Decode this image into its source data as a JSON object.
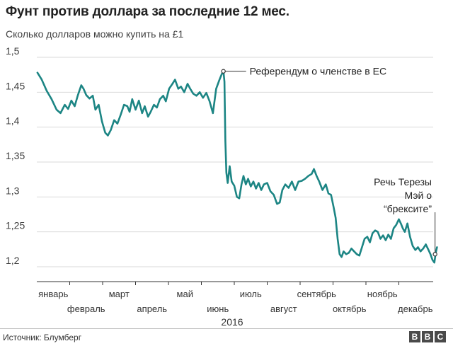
{
  "header": {
    "title": "Фунт против доллара за последние 12 мес.",
    "subtitle": "Сколько долларов можно купить на £1"
  },
  "footer": {
    "source": "Источник: Блумберг",
    "logo_letters": [
      "B",
      "B",
      "C"
    ]
  },
  "colors": {
    "line": "#1c8584",
    "grid": "#d9d9d9",
    "text": "#222222"
  },
  "chart_data": {
    "type": "line",
    "title": "Фунт против доллара за последние 12 мес.",
    "subtitle": "Сколько долларов можно купить на £1",
    "xlabel": "2016",
    "ylabel": "",
    "ylim": [
      1.2,
      1.5
    ],
    "yticks": [
      1.2,
      1.25,
      1.3,
      1.35,
      1.4,
      1.45,
      1.5
    ],
    "ytick_labels": [
      "1,2",
      "1,25",
      "1,3",
      "1,35",
      "1,4",
      "1,45",
      "1,5"
    ],
    "xlim": [
      0,
      12
    ],
    "month_ticks": [
      {
        "x": 0.5,
        "label": "январь"
      },
      {
        "x": 1.5,
        "label": "февраль"
      },
      {
        "x": 2.5,
        "label": "март"
      },
      {
        "x": 3.5,
        "label": "апрель"
      },
      {
        "x": 4.5,
        "label": "май"
      },
      {
        "x": 5.5,
        "label": "июнь"
      },
      {
        "x": 6.5,
        "label": "июль"
      },
      {
        "x": 7.5,
        "label": "август"
      },
      {
        "x": 8.5,
        "label": "сентябрь"
      },
      {
        "x": 9.5,
        "label": "октябрь"
      },
      {
        "x": 10.5,
        "label": "ноябрь"
      },
      {
        "x": 11.5,
        "label": "декабрь"
      }
    ],
    "year_label": "2016",
    "grid": true,
    "series": [
      {
        "values": [
          [
            0.02,
            1.478
          ],
          [
            0.15,
            1.468
          ],
          [
            0.3,
            1.452
          ],
          [
            0.45,
            1.44
          ],
          [
            0.6,
            1.425
          ],
          [
            0.72,
            1.42
          ],
          [
            0.85,
            1.432
          ],
          [
            0.95,
            1.426
          ],
          [
            1.05,
            1.438
          ],
          [
            1.15,
            1.43
          ],
          [
            1.25,
            1.446
          ],
          [
            1.35,
            1.46
          ],
          [
            1.42,
            1.455
          ],
          [
            1.5,
            1.446
          ],
          [
            1.6,
            1.441
          ],
          [
            1.7,
            1.445
          ],
          [
            1.78,
            1.425
          ],
          [
            1.88,
            1.432
          ],
          [
            1.98,
            1.408
          ],
          [
            2.08,
            1.392
          ],
          [
            2.16,
            1.388
          ],
          [
            2.25,
            1.396
          ],
          [
            2.35,
            1.41
          ],
          [
            2.45,
            1.405
          ],
          [
            2.55,
            1.418
          ],
          [
            2.65,
            1.432
          ],
          [
            2.75,
            1.43
          ],
          [
            2.82,
            1.422
          ],
          [
            2.9,
            1.44
          ],
          [
            3.0,
            1.425
          ],
          [
            3.1,
            1.438
          ],
          [
            3.2,
            1.42
          ],
          [
            3.28,
            1.43
          ],
          [
            3.38,
            1.415
          ],
          [
            3.46,
            1.422
          ],
          [
            3.56,
            1.432
          ],
          [
            3.65,
            1.428
          ],
          [
            3.74,
            1.44
          ],
          [
            3.84,
            1.445
          ],
          [
            3.92,
            1.437
          ],
          [
            4.02,
            1.455
          ],
          [
            4.12,
            1.462
          ],
          [
            4.2,
            1.468
          ],
          [
            4.3,
            1.455
          ],
          [
            4.38,
            1.458
          ],
          [
            4.48,
            1.45
          ],
          [
            4.58,
            1.462
          ],
          [
            4.66,
            1.455
          ],
          [
            4.75,
            1.448
          ],
          [
            4.85,
            1.445
          ],
          [
            4.95,
            1.45
          ],
          [
            5.05,
            1.442
          ],
          [
            5.15,
            1.449
          ],
          [
            5.25,
            1.437
          ],
          [
            5.35,
            1.42
          ],
          [
            5.45,
            1.455
          ],
          [
            5.55,
            1.468
          ],
          [
            5.62,
            1.476
          ],
          [
            5.67,
            1.48
          ],
          [
            5.7,
            1.465
          ],
          [
            5.73,
            1.38
          ],
          [
            5.76,
            1.335
          ],
          [
            5.8,
            1.32
          ],
          [
            5.86,
            1.344
          ],
          [
            5.92,
            1.322
          ],
          [
            6.0,
            1.316
          ],
          [
            6.08,
            1.3
          ],
          [
            6.15,
            1.298
          ],
          [
            6.22,
            1.318
          ],
          [
            6.28,
            1.33
          ],
          [
            6.35,
            1.318
          ],
          [
            6.42,
            1.326
          ],
          [
            6.5,
            1.315
          ],
          [
            6.58,
            1.322
          ],
          [
            6.66,
            1.312
          ],
          [
            6.74,
            1.32
          ],
          [
            6.82,
            1.31
          ],
          [
            6.9,
            1.318
          ],
          [
            7.0,
            1.32
          ],
          [
            7.1,
            1.308
          ],
          [
            7.2,
            1.303
          ],
          [
            7.3,
            1.29
          ],
          [
            7.38,
            1.292
          ],
          [
            7.46,
            1.31
          ],
          [
            7.55,
            1.318
          ],
          [
            7.65,
            1.313
          ],
          [
            7.75,
            1.322
          ],
          [
            7.85,
            1.31
          ],
          [
            7.95,
            1.322
          ],
          [
            8.05,
            1.323
          ],
          [
            8.15,
            1.326
          ],
          [
            8.25,
            1.33
          ],
          [
            8.35,
            1.333
          ],
          [
            8.42,
            1.34
          ],
          [
            8.5,
            1.33
          ],
          [
            8.58,
            1.322
          ],
          [
            8.68,
            1.31
          ],
          [
            8.78,
            1.318
          ],
          [
            8.86,
            1.305
          ],
          [
            8.94,
            1.303
          ],
          [
            9.02,
            1.285
          ],
          [
            9.08,
            1.27
          ],
          [
            9.14,
            1.24
          ],
          [
            9.2,
            1.218
          ],
          [
            9.26,
            1.214
          ],
          [
            9.32,
            1.222
          ],
          [
            9.4,
            1.218
          ],
          [
            9.48,
            1.22
          ],
          [
            9.56,
            1.226
          ],
          [
            9.64,
            1.222
          ],
          [
            9.72,
            1.218
          ],
          [
            9.8,
            1.216
          ],
          [
            9.88,
            1.228
          ],
          [
            9.96,
            1.24
          ],
          [
            10.04,
            1.243
          ],
          [
            10.12,
            1.235
          ],
          [
            10.2,
            1.248
          ],
          [
            10.28,
            1.252
          ],
          [
            10.36,
            1.25
          ],
          [
            10.44,
            1.24
          ],
          [
            10.52,
            1.245
          ],
          [
            10.6,
            1.238
          ],
          [
            10.68,
            1.246
          ],
          [
            10.76,
            1.24
          ],
          [
            10.84,
            1.255
          ],
          [
            10.92,
            1.26
          ],
          [
            11.0,
            1.268
          ],
          [
            11.06,
            1.262
          ],
          [
            11.12,
            1.255
          ],
          [
            11.18,
            1.25
          ],
          [
            11.26,
            1.262
          ],
          [
            11.34,
            1.243
          ],
          [
            11.42,
            1.23
          ],
          [
            11.5,
            1.224
          ],
          [
            11.58,
            1.228
          ],
          [
            11.66,
            1.222
          ],
          [
            11.74,
            1.226
          ],
          [
            11.82,
            1.232
          ],
          [
            11.9,
            1.224
          ],
          [
            11.96,
            1.218
          ],
          [
            12.02,
            1.21
          ],
          [
            12.08,
            1.206
          ],
          [
            12.12,
            1.22
          ],
          [
            12.16,
            1.228
          ]
        ]
      }
    ],
    "annotations": [
      {
        "label": "Референдум о членстве в ЕС",
        "x": 5.67,
        "y": 1.48
      },
      {
        "label": "Речь Терезы\nМэй о\n“брексите”",
        "x": 12.1,
        "y": 1.218
      }
    ]
  }
}
